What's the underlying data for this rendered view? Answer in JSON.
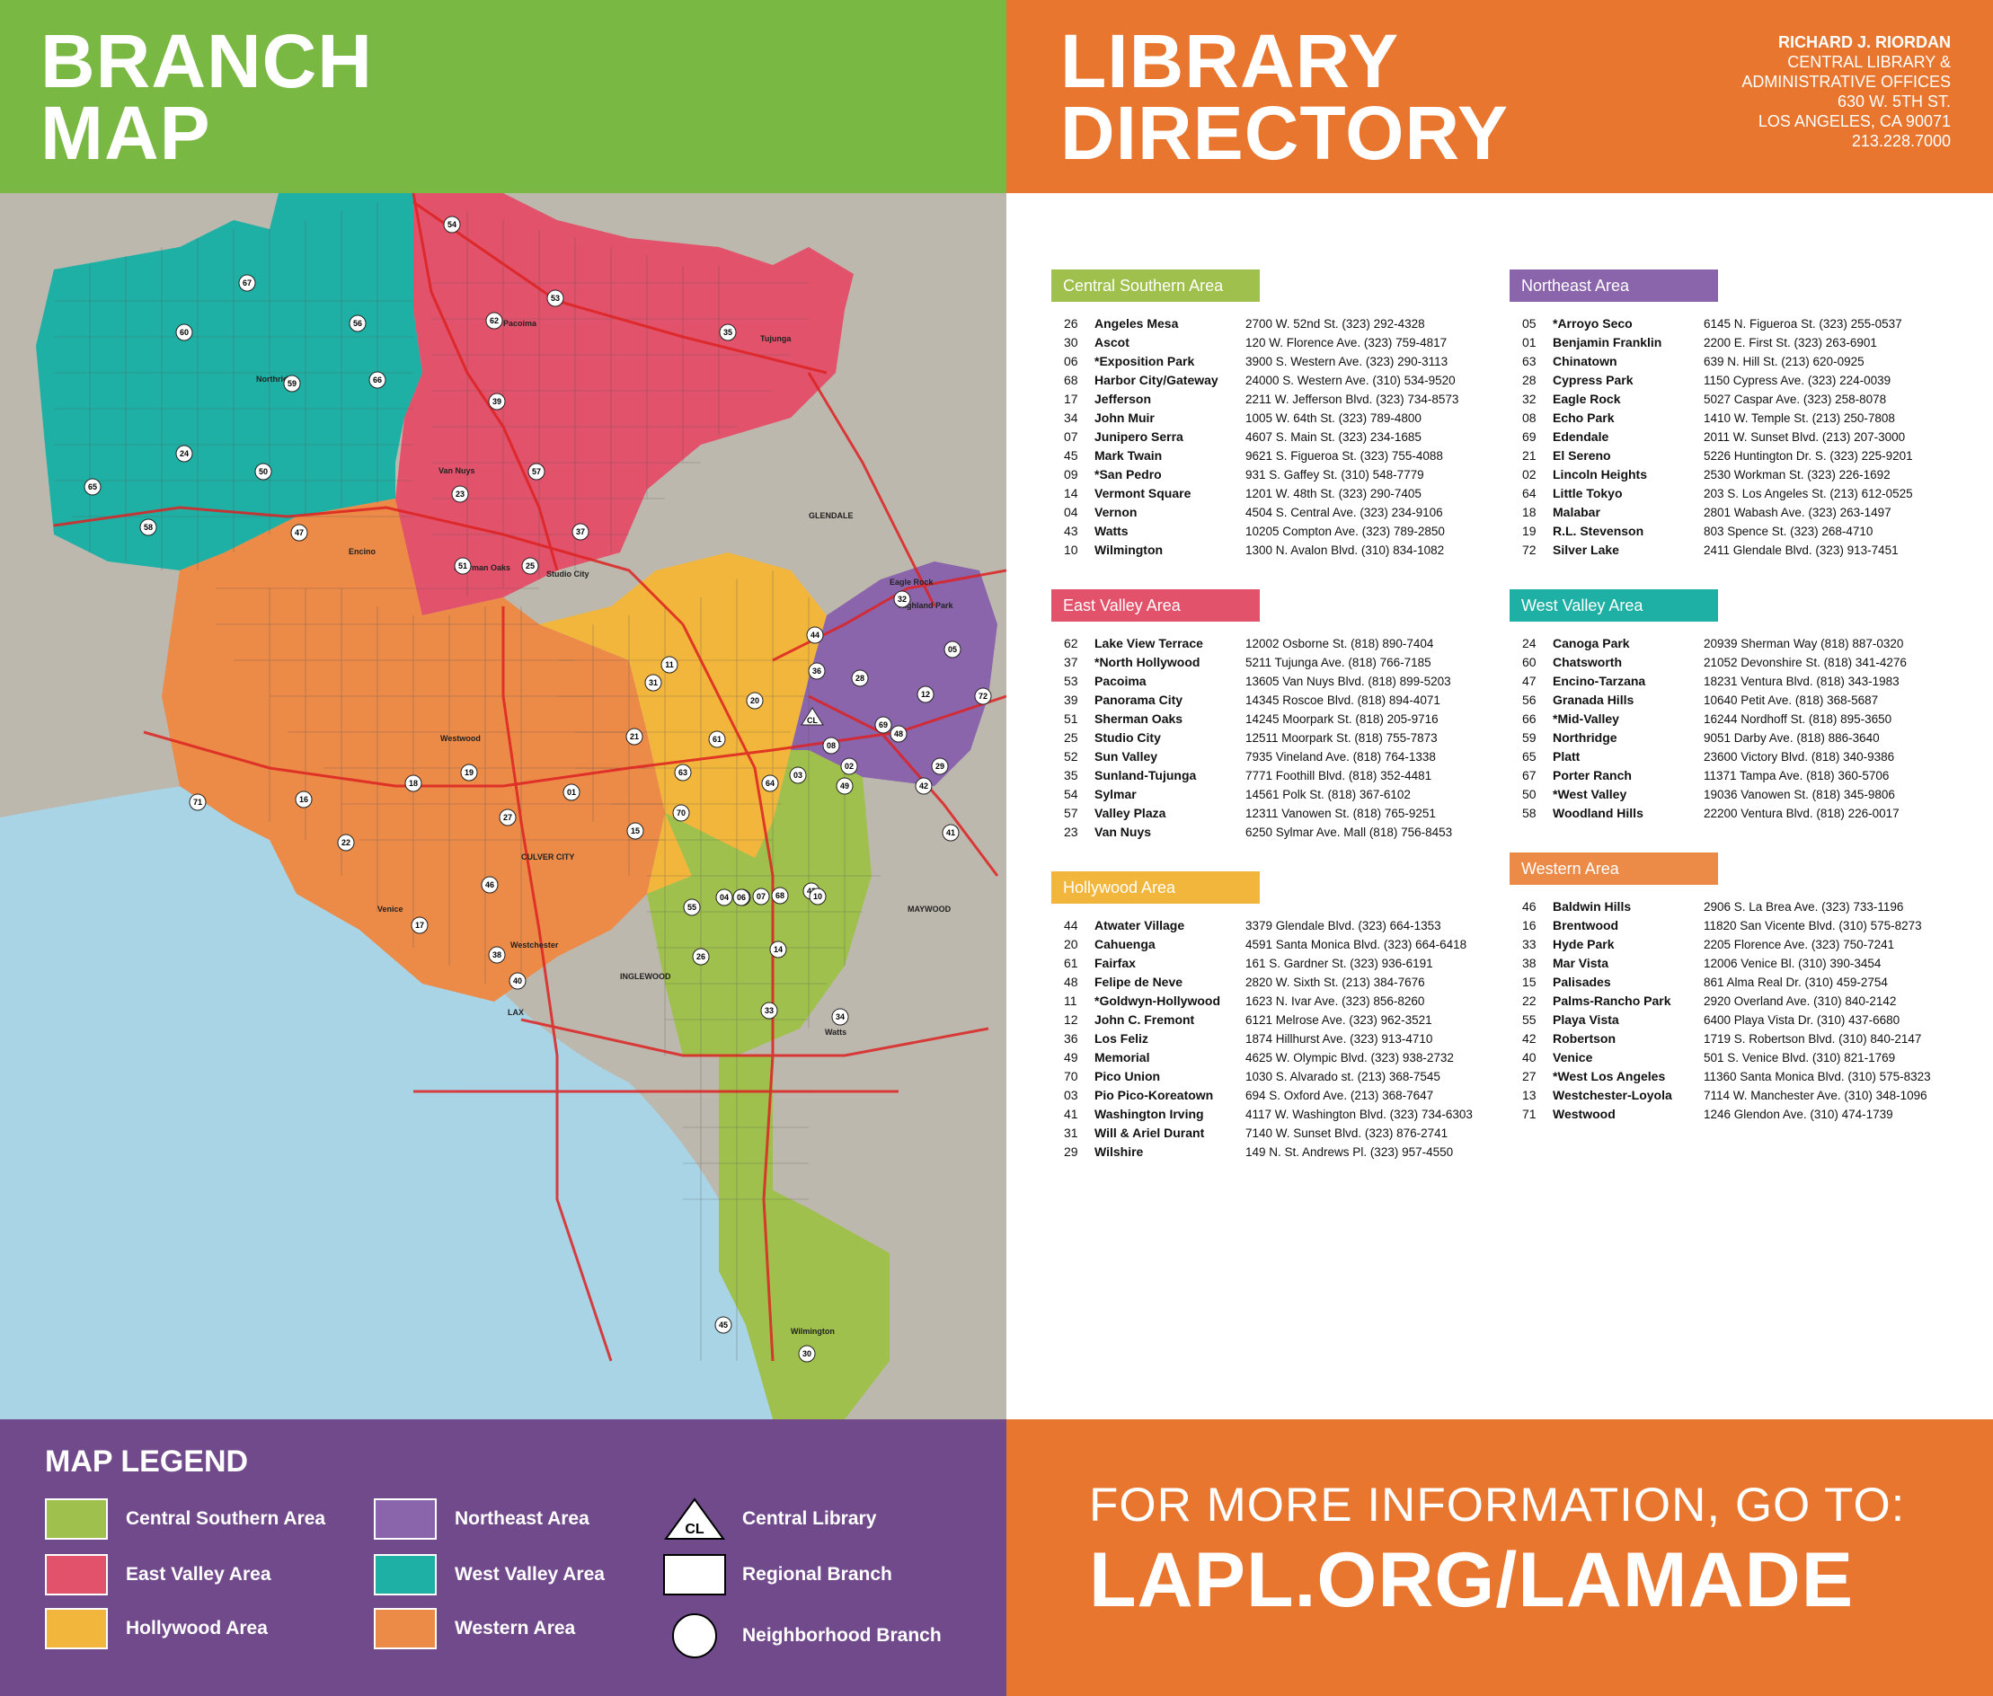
{
  "header": {
    "left_title_line1": "BRANCH",
    "left_title_line2": "MAP",
    "right_title_line1": "LIBRARY",
    "right_title_line2": "DIRECTORY",
    "address": {
      "line1": "RICHARD J. RIORDAN",
      "line2": "CENTRAL LIBRARY &",
      "line3": "ADMINISTRATIVE OFFICES",
      "line4": "630 W. 5TH ST.",
      "line5": "LOS ANGELES, CA 90071",
      "line6": "213.228.7000"
    }
  },
  "colors": {
    "central_southern": "#9fc04c",
    "east_valley": "#e2526b",
    "hollywood": "#f2b63c",
    "northeast": "#8a65ab",
    "west_valley": "#1fb0a5",
    "western": "#ec8a48",
    "header_green": "#78b843",
    "header_orange": "#e8762f",
    "legend_purple": "#714a8c",
    "water": "#a9d4e6",
    "land": "#bdb8ae"
  },
  "map_labels": {
    "glendale": "GLENDALE",
    "culver_city": "CULVER CITY",
    "inglewood": "INGLEWOOD",
    "lax": "LAX",
    "maywood": "MAYWOOD",
    "venice": "Venice",
    "westwood": "Westwood",
    "wilmington": "Wilmington",
    "watts": "Watts",
    "pacoima": "Pacoima",
    "tujunga": "Tujunga",
    "van_nuys": "Van Nuys",
    "encino": "Encino",
    "northridge": "Northridge",
    "eagle_rock": "Eagle Rock",
    "highland_park": "Highland Park",
    "westchester": "Westchester",
    "studio_city": "Studio City",
    "sherman_oaks": "Sherman Oaks"
  },
  "directory": {
    "central_southern": {
      "heading": "Central Southern Area",
      "rows": [
        [
          "26",
          "Angeles Mesa",
          "2700 W. 52nd St. (323) 292-4328"
        ],
        [
          "30",
          "Ascot",
          "120 W. Florence Ave. (323) 759-4817"
        ],
        [
          "06",
          "*Exposition Park",
          "3900 S. Western Ave. (323) 290-3113"
        ],
        [
          "68",
          "Harbor City/Gateway",
          "24000 S. Western Ave. (310) 534-9520"
        ],
        [
          "17",
          "Jefferson",
          "2211 W. Jefferson Blvd. (323) 734-8573"
        ],
        [
          "34",
          "John Muir",
          "1005 W. 64th St. (323) 789-4800"
        ],
        [
          "07",
          "Junipero Serra",
          "4607 S. Main St. (323) 234-1685"
        ],
        [
          "45",
          "Mark Twain",
          "9621 S. Figueroa St. (323) 755-4088"
        ],
        [
          "09",
          "*San Pedro",
          "931 S. Gaffey St. (310) 548-7779"
        ],
        [
          "14",
          "Vermont Square",
          "1201 W. 48th St. (323) 290-7405"
        ],
        [
          "04",
          "Vernon",
          "4504 S. Central Ave. (323) 234-9106"
        ],
        [
          "43",
          "Watts",
          "10205 Compton Ave. (323) 789-2850"
        ],
        [
          "10",
          "Wilmington",
          "1300 N. Avalon Blvd. (310) 834-1082"
        ]
      ]
    },
    "northeast": {
      "heading": "Northeast Area",
      "rows": [
        [
          "05",
          "*Arroyo Seco",
          "6145 N. Figueroa St. (323) 255-0537"
        ],
        [
          "01",
          "Benjamin Franklin",
          "2200 E. First St. (323) 263-6901"
        ],
        [
          "63",
          "Chinatown",
          "639 N. Hill St. (213) 620-0925"
        ],
        [
          "28",
          "Cypress Park",
          "1150 Cypress Ave. (323) 224-0039"
        ],
        [
          "32",
          "Eagle Rock",
          "5027 Caspar Ave. (323) 258-8078"
        ],
        [
          "08",
          "Echo Park",
          "1410 W. Temple St. (213) 250-7808"
        ],
        [
          "69",
          "Edendale",
          "2011 W. Sunset Blvd. (213) 207-3000"
        ],
        [
          "21",
          "El Sereno",
          "5226 Huntington Dr. S. (323) 225-9201"
        ],
        [
          "02",
          "Lincoln Heights",
          "2530 Workman St. (323) 226-1692"
        ],
        [
          "64",
          "Little Tokyo",
          "203 S. Los Angeles St. (213) 612-0525"
        ],
        [
          "18",
          "Malabar",
          "2801 Wabash Ave. (323) 263-1497"
        ],
        [
          "19",
          "R.L. Stevenson",
          "803 Spence St. (323) 268-4710"
        ],
        [
          "72",
          "Silver Lake",
          "2411 Glendale Blvd. (323) 913-7451"
        ]
      ]
    },
    "east_valley": {
      "heading": "East Valley Area",
      "rows": [
        [
          "62",
          "Lake View Terrace",
          "12002 Osborne St. (818) 890-7404"
        ],
        [
          "37",
          "*North Hollywood",
          "5211 Tujunga Ave. (818) 766-7185"
        ],
        [
          "53",
          "Pacoima",
          "13605 Van Nuys Blvd. (818) 899-5203"
        ],
        [
          "39",
          "Panorama City",
          "14345 Roscoe Blvd. (818) 894-4071"
        ],
        [
          "51",
          "Sherman Oaks",
          "14245 Moorpark St. (818) 205-9716"
        ],
        [
          "25",
          "Studio City",
          "12511 Moorpark St. (818) 755-7873"
        ],
        [
          "52",
          "Sun Valley",
          "7935 Vineland Ave. (818) 764-1338"
        ],
        [
          "35",
          "Sunland-Tujunga",
          "7771 Foothill Blvd. (818) 352-4481"
        ],
        [
          "54",
          "Sylmar",
          "14561 Polk St. (818) 367-6102"
        ],
        [
          "57",
          "Valley Plaza",
          "12311 Vanowen St. (818) 765-9251"
        ],
        [
          "23",
          "Van Nuys",
          "6250 Sylmar Ave. Mall (818) 756-8453"
        ]
      ]
    },
    "west_valley": {
      "heading": "West Valley Area",
      "rows": [
        [
          "24",
          "Canoga Park",
          "20939 Sherman Way (818) 887-0320"
        ],
        [
          "60",
          "Chatsworth",
          "21052 Devonshire St. (818) 341-4276"
        ],
        [
          "47",
          "Encino-Tarzana",
          "18231 Ventura Blvd. (818) 343-1983"
        ],
        [
          "56",
          "Granada Hills",
          "10640 Petit Ave. (818) 368-5687"
        ],
        [
          "66",
          "*Mid-Valley",
          "16244 Nordhoff St. (818) 895-3650"
        ],
        [
          "59",
          "Northridge",
          "9051 Darby Ave. (818) 886-3640"
        ],
        [
          "65",
          "Platt",
          "23600 Victory Blvd. (818) 340-9386"
        ],
        [
          "67",
          "Porter Ranch",
          "11371 Tampa Ave. (818) 360-5706"
        ],
        [
          "50",
          "*West Valley",
          "19036 Vanowen St. (818) 345-9806"
        ],
        [
          "58",
          "Woodland Hills",
          "22200 Ventura Blvd.  (818) 226-0017"
        ]
      ]
    },
    "hollywood": {
      "heading": "Hollywood Area",
      "rows": [
        [
          "44",
          "Atwater Village",
          "3379 Glendale Blvd. (323) 664-1353"
        ],
        [
          "20",
          "Cahuenga",
          "4591 Santa Monica Blvd. (323) 664-6418"
        ],
        [
          "61",
          "Fairfax",
          "161 S. Gardner St. (323) 936-6191"
        ],
        [
          "48",
          "Felipe de Neve",
          "2820 W. Sixth St. (213) 384-7676"
        ],
        [
          "11",
          "*Goldwyn-Hollywood",
          "1623 N. Ivar Ave. (323) 856-8260"
        ],
        [
          "12",
          "John C. Fremont",
          "6121 Melrose Ave. (323) 962-3521"
        ],
        [
          "36",
          "Los Feliz",
          "1874 Hillhurst Ave.  (323) 913-4710"
        ],
        [
          "49",
          "Memorial",
          "4625 W. Olympic Blvd. (323) 938-2732"
        ],
        [
          "70",
          "Pico Union",
          "1030 S. Alvarado st. (213) 368-7545"
        ],
        [
          "03",
          "Pio Pico-Koreatown",
          "694 S. Oxford Ave.  (213) 368-7647"
        ],
        [
          "41",
          "Washington Irving",
          "4117 W. Washington Blvd. (323) 734-6303"
        ],
        [
          "31",
          "Will & Ariel Durant",
          "7140 W. Sunset Blvd. (323) 876-2741"
        ],
        [
          "29",
          "Wilshire",
          "149 N. St. Andrews Pl. (323) 957-4550"
        ]
      ]
    },
    "western": {
      "heading": "Western Area",
      "rows": [
        [
          "46",
          "Baldwin Hills",
          "2906 S. La Brea Ave. (323) 733-1196"
        ],
        [
          "16",
          "Brentwood",
          "11820 San Vicente Blvd. (310) 575-8273"
        ],
        [
          "33",
          "Hyde Park",
          "2205 Florence Ave.  (323) 750-7241"
        ],
        [
          "38",
          "Mar Vista",
          "12006 Venice Bl. (310) 390-3454"
        ],
        [
          "15",
          "Palisades",
          "861 Alma Real Dr. (310) 459-2754"
        ],
        [
          "22",
          "Palms-Rancho Park",
          "2920 Overland Ave. (310) 840-2142"
        ],
        [
          "55",
          "Playa Vista",
          "6400 Playa Vista Dr. (310) 437-6680"
        ],
        [
          "42",
          "Robertson",
          "1719 S. Robertson Blvd. (310) 840-2147"
        ],
        [
          "40",
          "Venice",
          "501 S. Venice Blvd. (310) 821-1769"
        ],
        [
          "27",
          "*West Los Angeles",
          "11360 Santa Monica Blvd. (310) 575-8323"
        ],
        [
          "13",
          "Westchester-Loyola",
          "7114 W. Manchester Ave. (310) 348-1096"
        ],
        [
          "71",
          "Westwood",
          "1246 Glendon Ave. (310) 474-1739"
        ]
      ]
    }
  },
  "legend": {
    "title": "MAP LEGEND",
    "items": {
      "central_southern": "Central Southern Area",
      "east_valley": "East Valley Area",
      "hollywood": "Hollywood Area",
      "northeast": "Northeast Area",
      "west_valley": "West Valley Area",
      "western": "Western Area",
      "central_library": "Central Library",
      "central_library_symbol": "CL",
      "regional_branch": "Regional Branch",
      "neighborhood_branch": "Neighborhood Branch"
    }
  },
  "footer": {
    "line1": "FOR MORE INFORMATION, GO TO:",
    "line2": "LAPL.ORG/LAMADE"
  },
  "map_branches": [
    "54",
    "67",
    "62",
    "53",
    "35",
    "60",
    "56",
    "59",
    "66",
    "39",
    "24",
    "50",
    "57",
    "65",
    "47",
    "58",
    "37",
    "51",
    "25",
    "23",
    "32",
    "44",
    "05",
    "36",
    "72",
    "11",
    "31",
    "20",
    "28",
    "12",
    "69",
    "21",
    "61",
    "29",
    "48",
    "08",
    "02",
    "49",
    "03",
    "63",
    "64",
    "01",
    "70",
    "42",
    "41",
    "18",
    "19",
    "16",
    "71",
    "27",
    "15",
    "22",
    "46",
    "17",
    "38",
    "40",
    "55",
    "13",
    "26",
    "14",
    "33",
    "34",
    "30",
    "45",
    "43",
    "10",
    "68",
    "07",
    "06",
    "04"
  ]
}
